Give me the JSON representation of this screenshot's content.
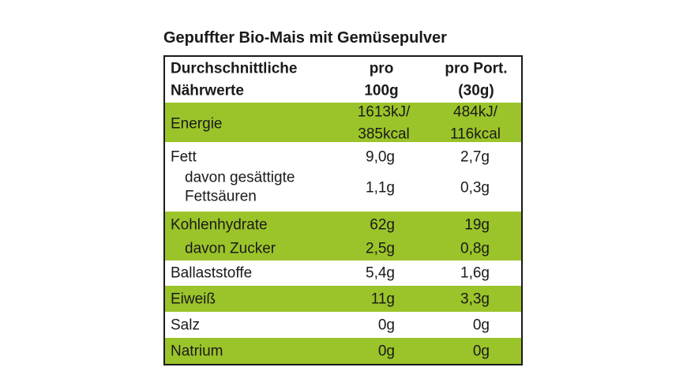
{
  "title": "Gepuffter Bio-Mais mit Gemüsepulver",
  "table": {
    "header": {
      "label": [
        "Durchschnittliche",
        "Nährwerte"
      ],
      "per_100g": [
        "pro",
        "100g"
      ],
      "per_portion": [
        "pro Port.",
        "(30g)"
      ]
    },
    "rows": [
      {
        "label": "Energie",
        "per_100g": [
          "1613kJ/",
          "385kcal"
        ],
        "per_portion": [
          "484kJ/",
          "116kcal"
        ]
      },
      {
        "label": "Fett",
        "per_100g": "9,0g",
        "per_portion": "2,7g"
      },
      {
        "label": [
          "davon gesättigte",
          "Fettsäuren"
        ],
        "per_100g": "1,1g",
        "per_portion": "0,3g"
      },
      {
        "label": "Kohlenhydrate",
        "per_100g": "62g",
        "per_portion": "19g"
      },
      {
        "label": "davon Zucker",
        "per_100g": "2,5g",
        "per_portion": "0,8g"
      },
      {
        "label": "Ballaststoffe",
        "per_100g": "5,4g",
        "per_portion": "1,6g"
      },
      {
        "label": "Eiweiß",
        "per_100g": "11g",
        "per_portion": "3,3g"
      },
      {
        "label": "Salz",
        "per_100g": "0g",
        "per_portion": "0g"
      },
      {
        "label": "Natrium",
        "per_100g": "0g",
        "per_portion": "0g"
      }
    ]
  }
}
